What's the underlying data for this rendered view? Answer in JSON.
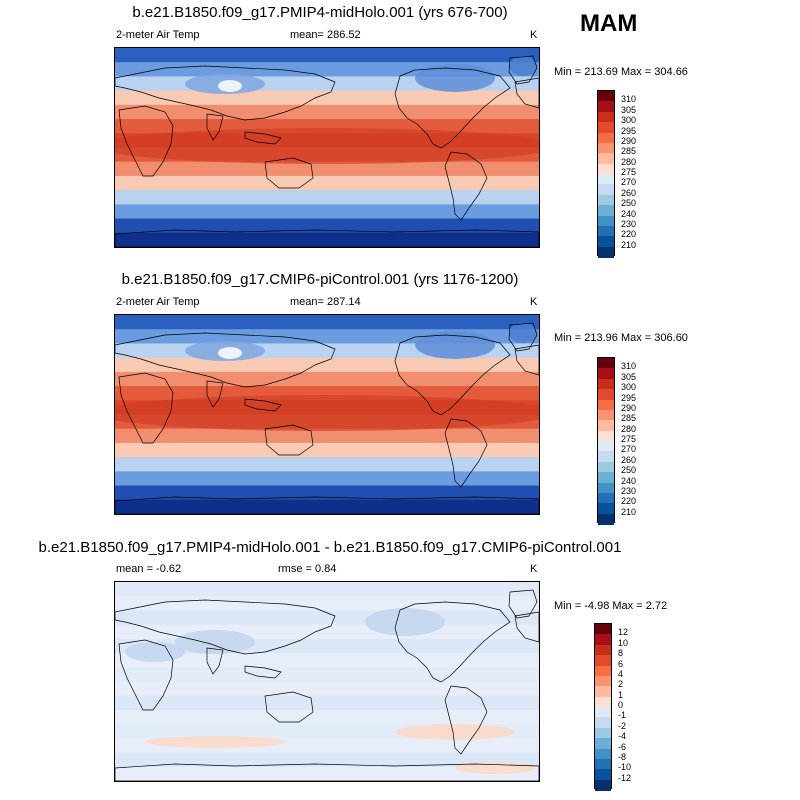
{
  "season": "MAM",
  "unit_label": "K",
  "panels": [
    {
      "title": "b.e21.B1850.f09_g17.PMIP4-midHolo.001 (yrs 676-700)",
      "left_label": "2-meter Air Temp",
      "center_label": "mean= 286.52",
      "minmax": "Min = 213.69 Max = 304.66",
      "kind": "abs"
    },
    {
      "title": "b.e21.B1850.f09_g17.CMIP6-piControl.001 (yrs 1176-1200)",
      "left_label": "2-meter Air Temp",
      "center_label": "mean= 287.14",
      "minmax": "Min = 213.96 Max = 306.60",
      "kind": "abs"
    },
    {
      "title": "b.e21.B1850.f09_g17.PMIP4-midHolo.001 - b.e21.B1850.f09_g17.CMIP6-piControl.001",
      "left_label": "mean =  -0.62",
      "center_label": "rmse =   0.84",
      "minmax": "Min =  -4.98 Max =   2.72",
      "kind": "diff"
    }
  ],
  "colorbars": {
    "abs": {
      "labels": [
        "310",
        "305",
        "300",
        "295",
        "290",
        "285",
        "280",
        "275",
        "270",
        "260",
        "250",
        "240",
        "230",
        "220",
        "210"
      ],
      "colors": [
        "#67000d",
        "#a50f15",
        "#cb2d1d",
        "#e34a2c",
        "#f46d43",
        "#fc9272",
        "#fcbba1",
        "#fde0d2",
        "#deebf7",
        "#c6dbef",
        "#9ecae1",
        "#6baed6",
        "#4292c6",
        "#2171b5",
        "#08519c",
        "#08306b"
      ]
    },
    "diff": {
      "labels": [
        "12",
        "10",
        "8",
        "6",
        "4",
        "2",
        "1",
        "0",
        "-1",
        "-2",
        "-4",
        "-6",
        "-8",
        "-10",
        "-12"
      ],
      "colors": [
        "#67000d",
        "#a50f15",
        "#cb2d1d",
        "#e34a2c",
        "#f46d43",
        "#fc9272",
        "#fcbba1",
        "#fde0d2",
        "#deebf7",
        "#c6dbef",
        "#9ecae1",
        "#6baed6",
        "#4292c6",
        "#2171b5",
        "#08519c",
        "#08306b"
      ]
    }
  }
}
